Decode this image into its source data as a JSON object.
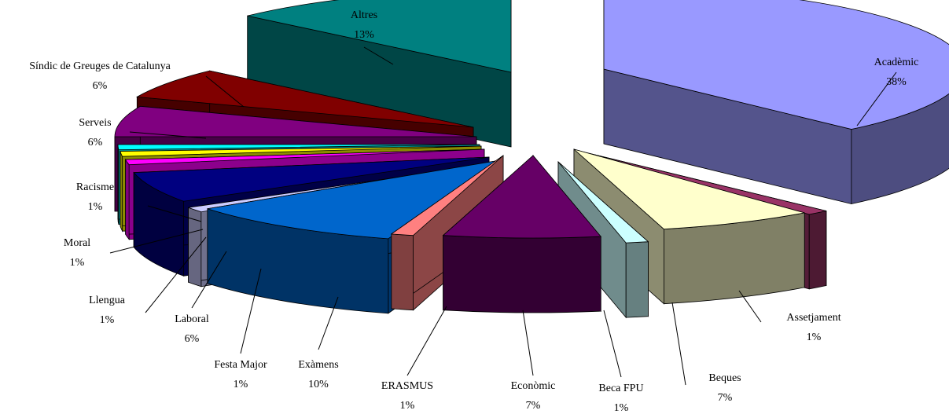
{
  "chart_data": {
    "type": "pie",
    "title": "",
    "style": "3d-exploded",
    "slices": [
      {
        "label": "Acadèmic",
        "value": 38,
        "pct_text": "38%",
        "color": "#9999ff"
      },
      {
        "label": "Assetjament",
        "value": 1,
        "pct_text": "1%",
        "color": "#993366"
      },
      {
        "label": "Beques",
        "value": 7,
        "pct_text": "7%",
        "color": "#ffffcc"
      },
      {
        "label": "Beca FPU",
        "value": 1,
        "pct_text": "1%",
        "color": "#ccffff"
      },
      {
        "label": "Econòmic",
        "value": 7,
        "pct_text": "7%",
        "color": "#660066"
      },
      {
        "label": "ERASMUS",
        "value": 1,
        "pct_text": "1%",
        "color": "#ff8080"
      },
      {
        "label": "Exàmens",
        "value": 10,
        "pct_text": "10%",
        "color": "#0066cc"
      },
      {
        "label": "Festa Major",
        "value": 1,
        "pct_text": "1%",
        "color": "#ccccff"
      },
      {
        "label": "Laboral",
        "value": 6,
        "pct_text": "6%",
        "color": "#000080"
      },
      {
        "label": "Llengua",
        "value": 1,
        "pct_text": "1%",
        "color": "#ff00ff"
      },
      {
        "label": "Moral",
        "value": 1,
        "pct_text": "1%",
        "color": "#ffff00"
      },
      {
        "label": "Racisme",
        "value": 1,
        "pct_text": "1%",
        "color": "#00ffff"
      },
      {
        "label": "Serveis",
        "value": 6,
        "pct_text": "6%",
        "color": "#800080"
      },
      {
        "label": "Síndic de Greuges de Catalunya",
        "value": 6,
        "pct_text": "6%",
        "color": "#800000"
      },
      {
        "label": "Altres",
        "value": 13,
        "pct_text": "13%",
        "color": "#008080"
      }
    ]
  }
}
